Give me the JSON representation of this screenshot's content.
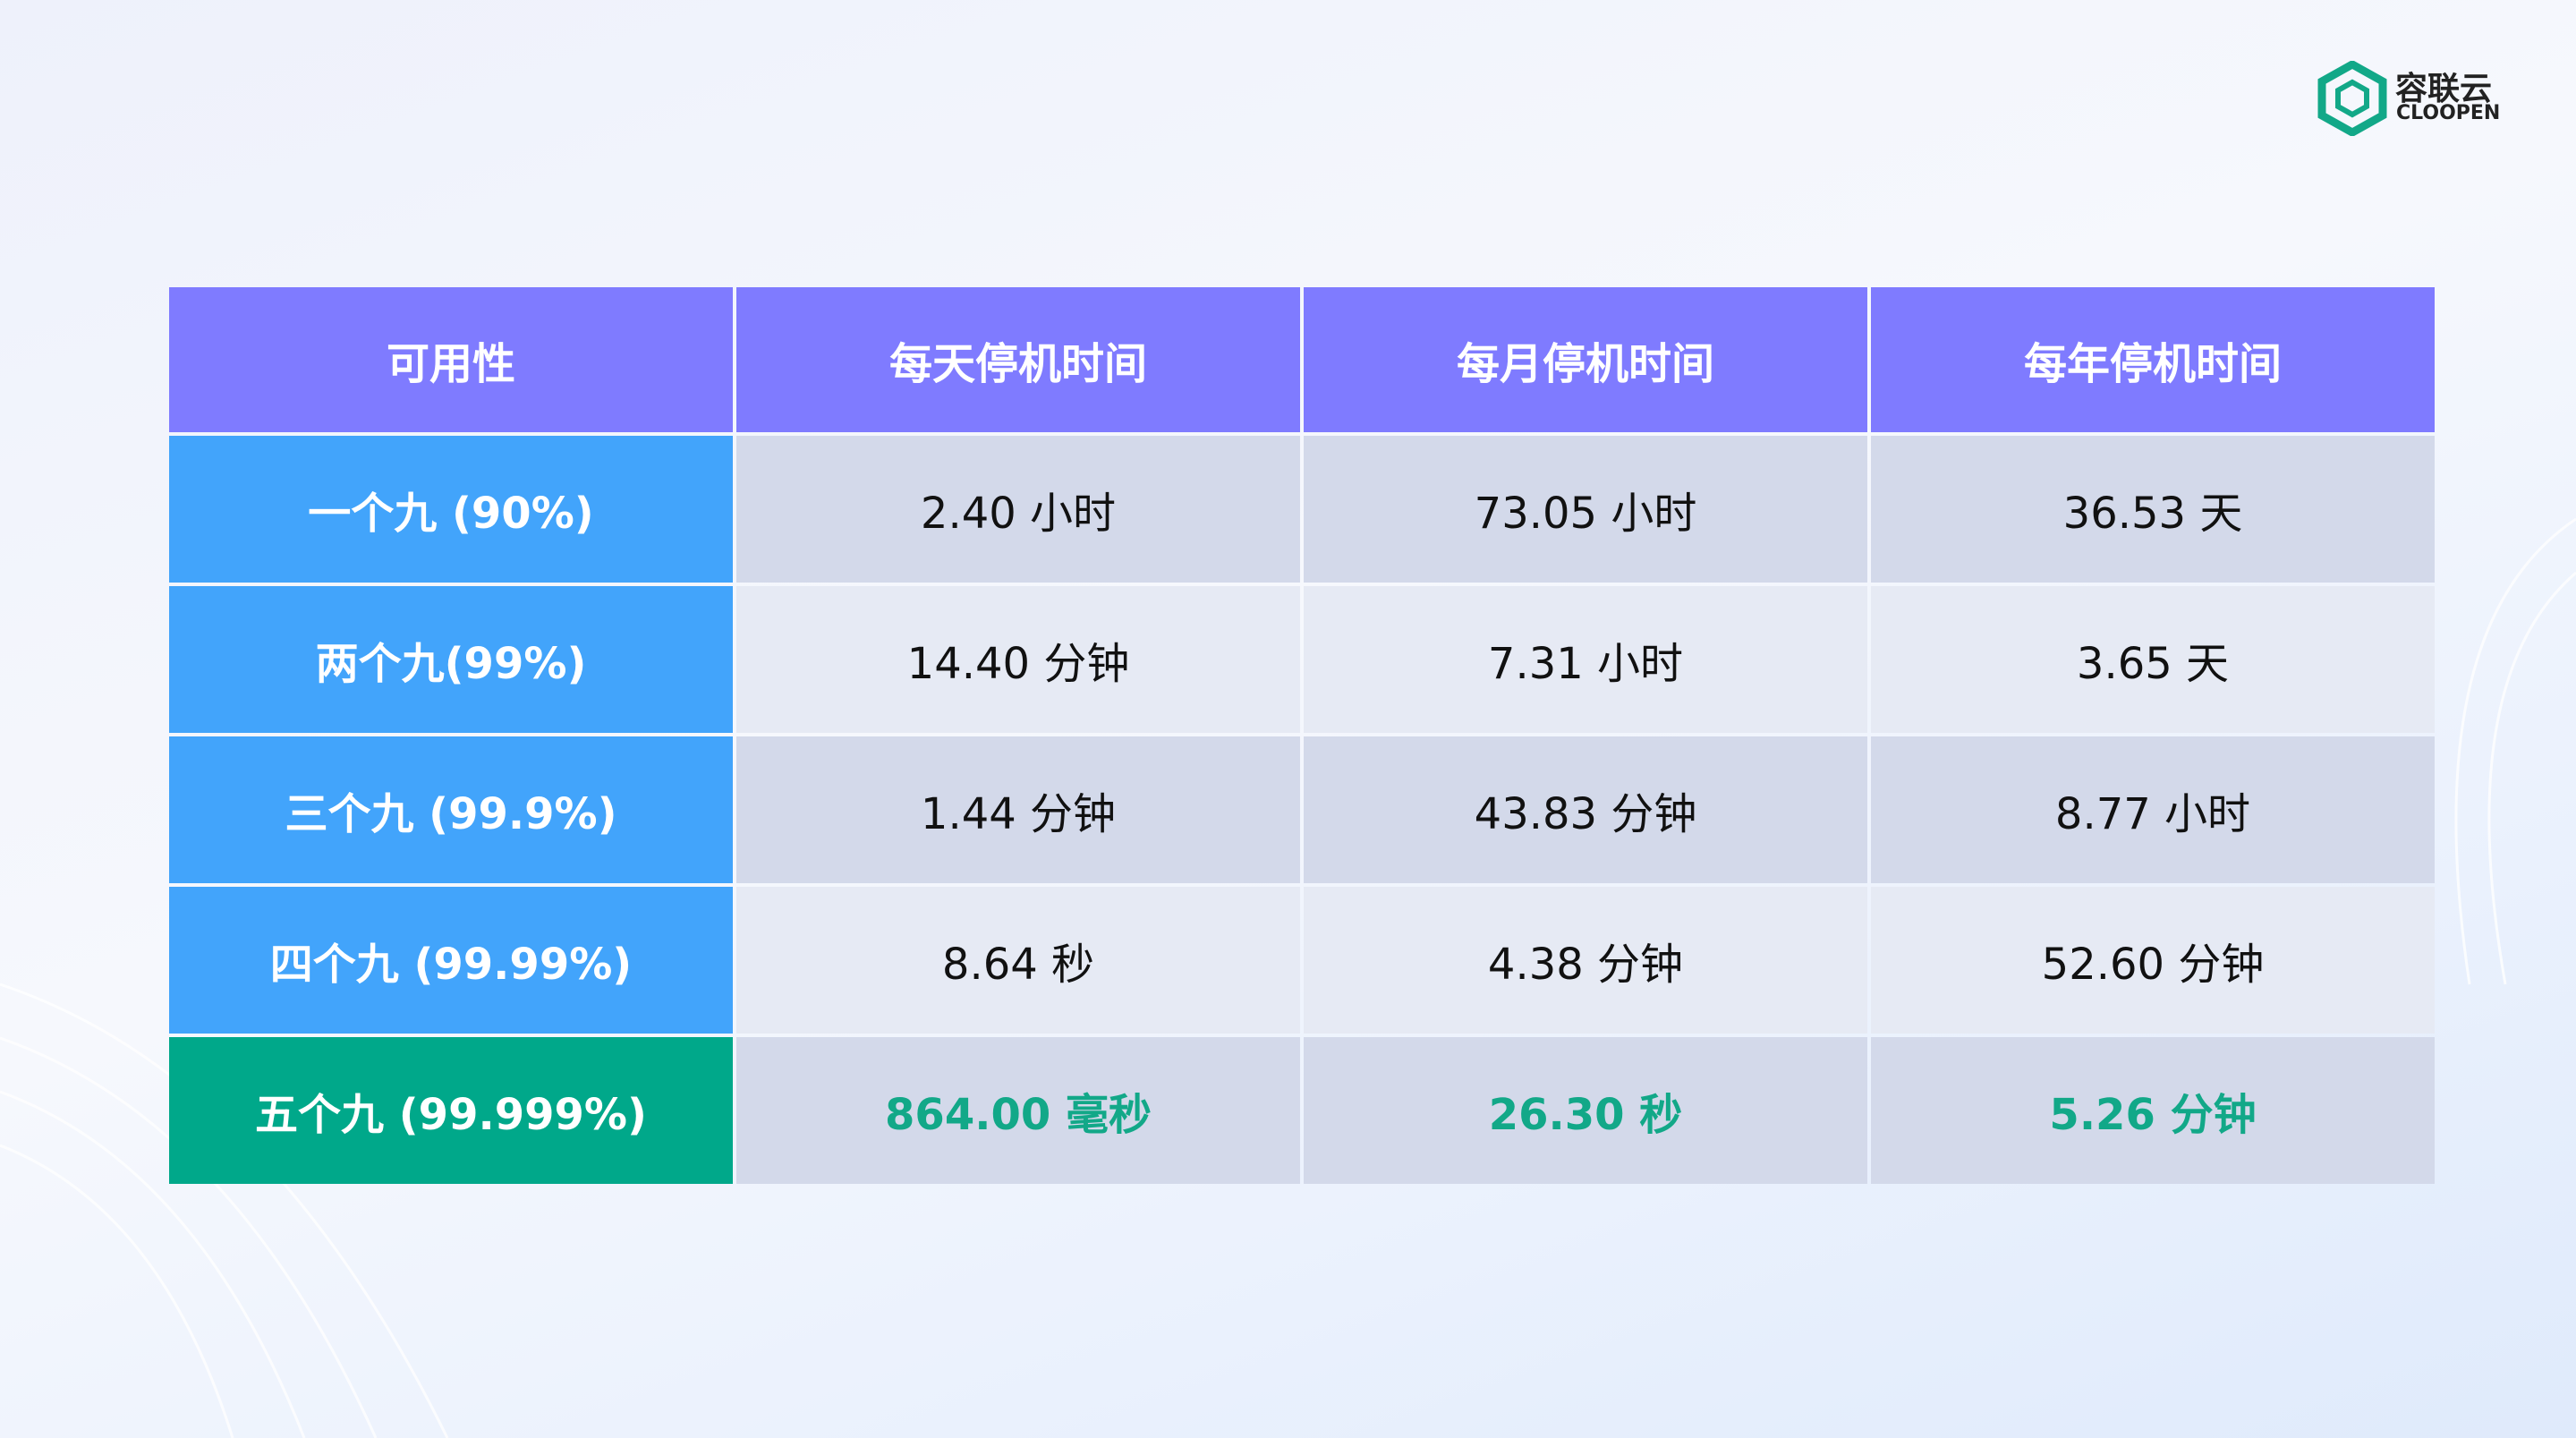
{
  "header": {
    "logo_name": "容联云",
    "logo_sub": "CLOOPEN"
  },
  "table": {
    "columns": [
      "可用性",
      "每天停机时间",
      "每月停机时间",
      "每年停机时间"
    ],
    "rows": [
      [
        "一个九 (90%)",
        "2.40 小时",
        "73.05 小时",
        "36.53 天"
      ],
      [
        "两个九(99%)",
        "14.40 分钟",
        "7.31 小时",
        "3.65 天"
      ],
      [
        "三个九 (99.9%)",
        "1.44 分钟",
        "43.83 分钟",
        "8.77 小时"
      ],
      [
        "四个九 (99.99%)",
        "8.64 秒",
        "4.38 分钟",
        "52.60 分钟"
      ],
      [
        "五个九 (99.999%)",
        "864.00 毫秒",
        "26.30 秒",
        "5.26 分钟"
      ]
    ]
  }
}
